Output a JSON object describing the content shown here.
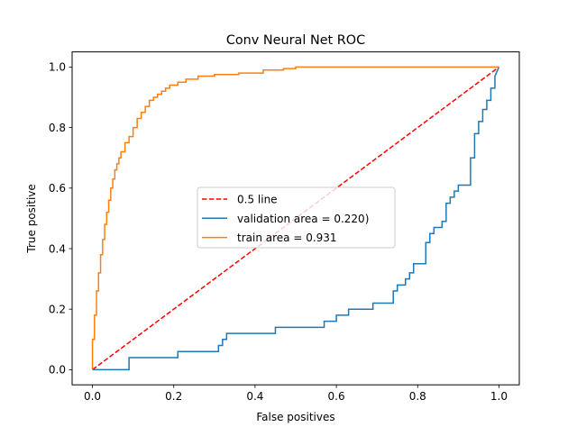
{
  "chart_data": {
    "type": "line",
    "title": "Conv Neural Net ROC",
    "xlabel": "False positives",
    "ylabel": "True positive",
    "xlim": [
      -0.05,
      1.05
    ],
    "ylim": [
      -0.05,
      1.05
    ],
    "xticks": [
      "0.0",
      "0.2",
      "0.4",
      "0.6",
      "0.8",
      "1.0"
    ],
    "yticks": [
      "0.0",
      "0.2",
      "0.4",
      "0.6",
      "0.8",
      "1.0"
    ],
    "xtick_values": [
      0.0,
      0.2,
      0.4,
      0.6,
      0.8,
      1.0
    ],
    "ytick_values": [
      0.0,
      0.2,
      0.4,
      0.6,
      0.8,
      1.0
    ],
    "grid": false,
    "legend_position": "center",
    "series": [
      {
        "name": "0.5 line",
        "color": "#ff0000",
        "style": "dashed",
        "x": [
          0.0,
          1.0
        ],
        "y": [
          0.0,
          1.0
        ]
      },
      {
        "name": "validation area = 0.220)",
        "color": "#1f77b4",
        "style": "step",
        "x": [
          0.0,
          0.0,
          0.09,
          0.09,
          0.21,
          0.21,
          0.31,
          0.31,
          0.32,
          0.32,
          0.33,
          0.33,
          0.45,
          0.45,
          0.57,
          0.57,
          0.6,
          0.6,
          0.63,
          0.63,
          0.69,
          0.69,
          0.74,
          0.74,
          0.75,
          0.75,
          0.77,
          0.77,
          0.78,
          0.78,
          0.79,
          0.79,
          0.82,
          0.82,
          0.83,
          0.83,
          0.84,
          0.84,
          0.86,
          0.86,
          0.87,
          0.87,
          0.88,
          0.88,
          0.89,
          0.89,
          0.9,
          0.9,
          0.91,
          0.91,
          0.93,
          0.93,
          0.94,
          0.94,
          0.95,
          0.95,
          0.96,
          0.96,
          0.97,
          0.97,
          0.98,
          0.98,
          0.99,
          0.99,
          1.0
        ],
        "y": [
          0.0,
          0.0,
          0.0,
          0.04,
          0.04,
          0.06,
          0.06,
          0.08,
          0.08,
          0.1,
          0.1,
          0.12,
          0.12,
          0.14,
          0.14,
          0.16,
          0.16,
          0.18,
          0.18,
          0.2,
          0.2,
          0.22,
          0.22,
          0.26,
          0.26,
          0.28,
          0.28,
          0.3,
          0.3,
          0.32,
          0.32,
          0.35,
          0.35,
          0.42,
          0.42,
          0.45,
          0.45,
          0.47,
          0.47,
          0.49,
          0.49,
          0.55,
          0.55,
          0.57,
          0.57,
          0.59,
          0.59,
          0.61,
          0.61,
          0.61,
          0.61,
          0.7,
          0.7,
          0.78,
          0.78,
          0.82,
          0.82,
          0.86,
          0.86,
          0.89,
          0.89,
          0.93,
          0.93,
          0.97,
          1.0
        ]
      },
      {
        "name": "train area = 0.931",
        "color": "#ff7f0e",
        "style": "step",
        "x": [
          0.0,
          0.0,
          0.005,
          0.005,
          0.01,
          0.01,
          0.015,
          0.015,
          0.02,
          0.02,
          0.025,
          0.025,
          0.03,
          0.03,
          0.035,
          0.035,
          0.04,
          0.04,
          0.045,
          0.045,
          0.05,
          0.05,
          0.055,
          0.055,
          0.06,
          0.06,
          0.065,
          0.065,
          0.07,
          0.07,
          0.08,
          0.08,
          0.09,
          0.09,
          0.1,
          0.1,
          0.11,
          0.11,
          0.12,
          0.12,
          0.13,
          0.13,
          0.14,
          0.14,
          0.15,
          0.15,
          0.16,
          0.16,
          0.17,
          0.17,
          0.18,
          0.18,
          0.19,
          0.19,
          0.21,
          0.21,
          0.23,
          0.23,
          0.26,
          0.26,
          0.3,
          0.3,
          0.36,
          0.36,
          0.42,
          0.42,
          0.47,
          0.47,
          0.5,
          0.5,
          1.0
        ],
        "y": [
          0.0,
          0.1,
          0.1,
          0.18,
          0.18,
          0.26,
          0.26,
          0.32,
          0.32,
          0.38,
          0.38,
          0.43,
          0.43,
          0.48,
          0.48,
          0.52,
          0.52,
          0.56,
          0.56,
          0.6,
          0.6,
          0.63,
          0.63,
          0.66,
          0.66,
          0.68,
          0.68,
          0.7,
          0.7,
          0.72,
          0.72,
          0.75,
          0.75,
          0.77,
          0.77,
          0.8,
          0.8,
          0.83,
          0.83,
          0.85,
          0.85,
          0.87,
          0.87,
          0.89,
          0.89,
          0.9,
          0.9,
          0.91,
          0.91,
          0.92,
          0.92,
          0.93,
          0.93,
          0.94,
          0.94,
          0.95,
          0.95,
          0.96,
          0.96,
          0.97,
          0.97,
          0.975,
          0.975,
          0.98,
          0.98,
          0.99,
          0.99,
          0.995,
          0.995,
          1.0,
          1.0
        ]
      }
    ]
  }
}
